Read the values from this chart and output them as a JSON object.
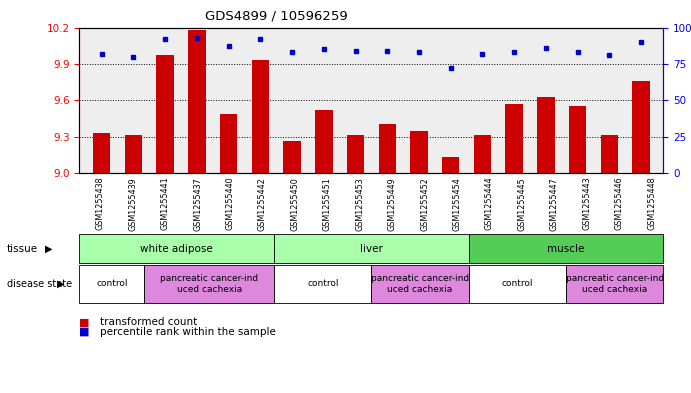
{
  "title": "GDS4899 / 10596259",
  "samples": [
    "GSM1255438",
    "GSM1255439",
    "GSM1255441",
    "GSM1255437",
    "GSM1255440",
    "GSM1255442",
    "GSM1255450",
    "GSM1255451",
    "GSM1255453",
    "GSM1255449",
    "GSM1255452",
    "GSM1255454",
    "GSM1255444",
    "GSM1255445",
    "GSM1255447",
    "GSM1255443",
    "GSM1255446",
    "GSM1255448"
  ],
  "bar_values": [
    9.33,
    9.31,
    9.97,
    10.18,
    9.49,
    9.93,
    9.26,
    9.52,
    9.31,
    9.4,
    9.35,
    9.13,
    9.31,
    9.57,
    9.63,
    9.55,
    9.31,
    9.76
  ],
  "dot_values": [
    82,
    80,
    92,
    93,
    87,
    92,
    83,
    85,
    84,
    84,
    83,
    72,
    82,
    83,
    86,
    83,
    81,
    90
  ],
  "ylim_left": [
    9.0,
    10.2
  ],
  "ylim_right": [
    0,
    100
  ],
  "yticks_left": [
    9.0,
    9.3,
    9.6,
    9.9,
    10.2
  ],
  "yticks_right": [
    0,
    25,
    50,
    75,
    100
  ],
  "bar_color": "#cc0000",
  "dot_color": "#0000cc",
  "tissue_groups": [
    {
      "label": "white adipose",
      "start": 0,
      "end": 5,
      "color": "#aaffaa"
    },
    {
      "label": "liver",
      "start": 6,
      "end": 11,
      "color": "#aaffaa"
    },
    {
      "label": "muscle",
      "start": 12,
      "end": 17,
      "color": "#55cc55"
    }
  ],
  "disease_groups": [
    {
      "label": "control",
      "start": 0,
      "end": 1,
      "color": "#ffffff"
    },
    {
      "label": "pancreatic cancer-ind\nuced cachexia",
      "start": 2,
      "end": 5,
      "color": "#dd88dd"
    },
    {
      "label": "control",
      "start": 6,
      "end": 8,
      "color": "#ffffff"
    },
    {
      "label": "pancreatic cancer-ind\nuced cachexia",
      "start": 9,
      "end": 11,
      "color": "#dd88dd"
    },
    {
      "label": "control",
      "start": 12,
      "end": 14,
      "color": "#ffffff"
    },
    {
      "label": "pancreatic cancer-ind\nuced cachexia",
      "start": 15,
      "end": 17,
      "color": "#dd88dd"
    }
  ]
}
